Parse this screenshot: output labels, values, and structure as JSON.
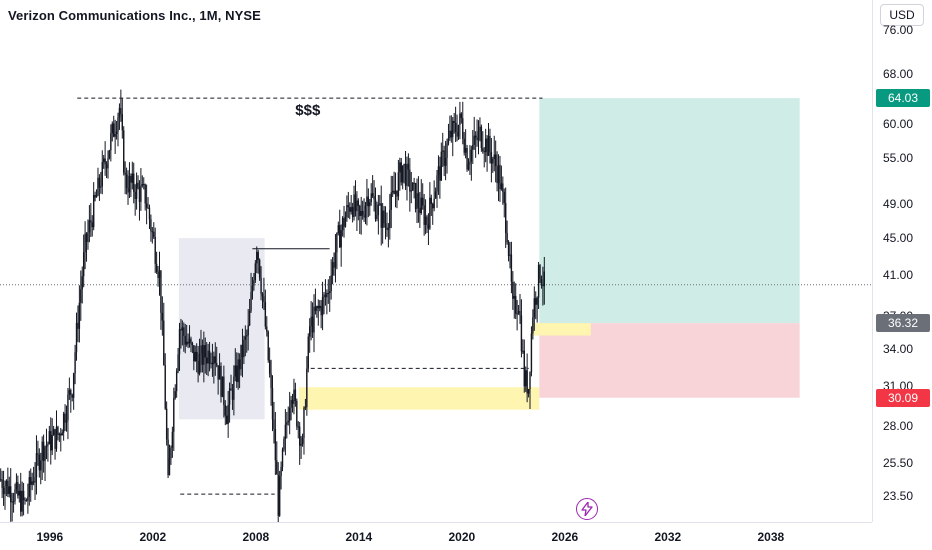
{
  "header": {
    "title": "Verizon Communications Inc., 1M, NYSE",
    "currency": "USD"
  },
  "chart_data": {
    "type": "candlestick",
    "symbol": "Verizon Communications Inc.",
    "interval": "1M",
    "exchange": "NYSE",
    "price_scale": "log",
    "ylim": [
      22,
      82
    ],
    "x_start": "1993-01",
    "x_end": "2041-04",
    "price_ticks": [
      76.0,
      68.0,
      60.0,
      55.0,
      49.0,
      45.0,
      41.0,
      37.0,
      34.0,
      31.0,
      28.0,
      25.5,
      23.5
    ],
    "price_tick_labels": [
      "76.00",
      "68.00",
      "60.00",
      "55.00",
      "49.00",
      "45.00",
      "41.00",
      "37.00",
      "34.00",
      "31.00",
      "28.00",
      "25.50",
      "23.50"
    ],
    "time_ticks": [
      "1996",
      "2002",
      "2008",
      "2014",
      "2020",
      "2026",
      "2032",
      "2038"
    ],
    "price_path": [
      [
        "1993-01",
        24.5
      ],
      [
        "1994-06",
        23.0
      ],
      [
        "1995-06",
        26.5
      ],
      [
        "1996-06",
        27.5
      ],
      [
        "1997-03",
        31.0
      ],
      [
        "1997-12",
        44.0
      ],
      [
        "1998-08",
        50.0
      ],
      [
        "1999-04",
        56.0
      ],
      [
        "1999-12",
        62.5
      ],
      [
        "2000-04",
        52.0
      ],
      [
        "2001-06",
        50.0
      ],
      [
        "2002-04",
        41.0
      ],
      [
        "2002-10",
        24.0
      ],
      [
        "2003-06",
        36.0
      ],
      [
        "2004-06",
        33.0
      ],
      [
        "2005-06",
        34.0
      ],
      [
        "2006-03",
        29.0
      ],
      [
        "2007-06",
        35.5
      ],
      [
        "2007-12",
        44.5
      ],
      [
        "2008-06",
        36.0
      ],
      [
        "2009-03",
        23.0
      ],
      [
        "2009-12",
        31.0
      ],
      [
        "2010-08",
        26.5
      ],
      [
        "2011-01",
        36.0
      ],
      [
        "2012-01",
        39.0
      ],
      [
        "2012-09",
        45.0
      ],
      [
        "2013-06",
        49.5
      ],
      [
        "2013-12",
        47.0
      ],
      [
        "2014-06",
        50.5
      ],
      [
        "2015-06",
        46.5
      ],
      [
        "2016-06",
        54.0
      ],
      [
        "2017-01",
        50.5
      ],
      [
        "2017-11",
        47.0
      ],
      [
        "2018-08",
        53.5
      ],
      [
        "2019-04",
        58.5
      ],
      [
        "2019-11",
        60.5
      ],
      [
        "2020-03",
        55.0
      ],
      [
        "2020-12",
        58.5
      ],
      [
        "2021-06",
        56.5
      ],
      [
        "2022-01",
        53.0
      ],
      [
        "2022-07",
        46.0
      ],
      [
        "2022-11",
        37.5
      ],
      [
        "2023-03",
        38.5
      ],
      [
        "2023-07",
        31.5
      ],
      [
        "2023-10",
        31.0
      ],
      [
        "2024-01",
        37.5
      ],
      [
        "2024-06",
        41.5
      ],
      [
        "2024-09",
        40.0
      ]
    ],
    "current_price": 40.0,
    "annotations": {
      "resistance_text": "$$$",
      "resistance_level": 64.03,
      "range_box": {
        "x0": "2003-06",
        "x1": "2008-06",
        "y0": 28.5,
        "y1": 45.0
      },
      "high_line_level": 43.8,
      "low_line_level": 23.6,
      "support_line_level": 32.4,
      "demand_zone": {
        "x0": "2010-06",
        "x1": "2024-06",
        "y0": 29.2,
        "y1": 30.9
      },
      "entry_zone": {
        "x0": "2024-01",
        "x1": "2027-06",
        "y0": 35.2,
        "y1": 36.32
      }
    },
    "position": {
      "target": 64.03,
      "entry": 36.32,
      "stop": 30.09,
      "x0": "2024-06",
      "x1": "2039-08"
    },
    "price_labels": {
      "target": "64.03",
      "entry": "36.32",
      "stop": "30.09"
    }
  },
  "colors": {
    "candle": "#131722",
    "profit_zone": "#cfece6",
    "loss_zone": "#f8d4d9",
    "yellow_zone": "#fdf5b0",
    "range_box": "#e9eaf1",
    "target_badge": "#089981",
    "entry_badge": "#6b6f78",
    "stop_badge": "#f23645",
    "accent": "#9c27b0"
  },
  "icons": {
    "bolt": "bolt-icon"
  }
}
